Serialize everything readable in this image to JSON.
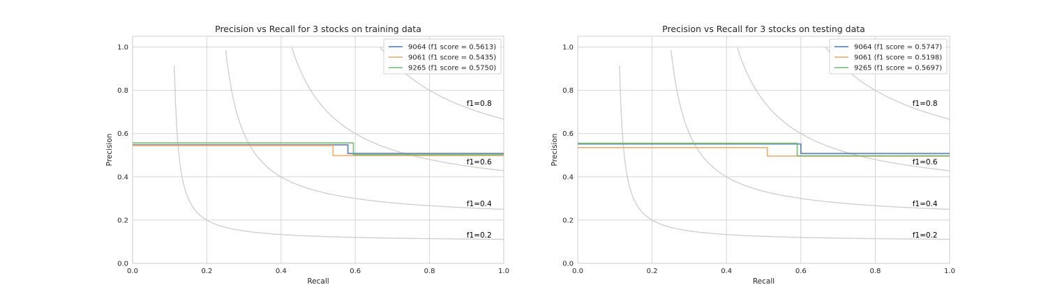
{
  "chart_data": [
    {
      "type": "line",
      "title": "Precision vs Recall for 3 stocks on training data",
      "xlabel": "Recall",
      "ylabel": "Precision",
      "xlim": [
        0.0,
        1.0
      ],
      "ylim": [
        0.0,
        1.05
      ],
      "xticks": [
        "0.0",
        "0.2",
        "0.4",
        "0.6",
        "0.8",
        "1.0"
      ],
      "yticks": [
        "0.0",
        "0.2",
        "0.4",
        "0.6",
        "0.8",
        "1.0"
      ],
      "grid": true,
      "legend_position": "top-right",
      "iso_f1": [
        {
          "f1": 0.2,
          "label": "f1=0.2"
        },
        {
          "f1": 0.4,
          "label": "f1=0.4"
        },
        {
          "f1": 0.6,
          "label": "f1=0.6"
        },
        {
          "f1": 0.8,
          "label": "f1=0.8"
        }
      ],
      "series": [
        {
          "name": "9064 (f1 score = 0.5613)",
          "color": "#4c72b0",
          "recall": [
            0.0,
            0.58,
            0.58,
            0.6,
            0.6,
            1.0
          ],
          "precision": [
            0.548,
            0.548,
            0.508,
            0.508,
            0.508,
            0.508
          ]
        },
        {
          "name": "9061 (f1 score = 0.5435)",
          "color": "#f5a65b",
          "recall": [
            0.0,
            0.54,
            0.54,
            1.0
          ],
          "precision": [
            0.545,
            0.545,
            0.498,
            0.498
          ]
        },
        {
          "name": "9265 (f1 score = 0.5750)",
          "color": "#6ab86a",
          "recall": [
            0.0,
            0.595,
            0.595,
            1.0
          ],
          "precision": [
            0.557,
            0.557,
            0.502,
            0.502
          ]
        }
      ]
    },
    {
      "type": "line",
      "title": "Precision vs Recall for 3 stocks on testing data",
      "xlabel": "Recall",
      "ylabel": "Precision",
      "xlim": [
        0.0,
        1.0
      ],
      "ylim": [
        0.0,
        1.05
      ],
      "xticks": [
        "0.0",
        "0.2",
        "0.4",
        "0.6",
        "0.8",
        "1.0"
      ],
      "yticks": [
        "0.0",
        "0.2",
        "0.4",
        "0.6",
        "0.8",
        "1.0"
      ],
      "grid": true,
      "legend_position": "top-right",
      "iso_f1": [
        {
          "f1": 0.2,
          "label": "f1=0.2"
        },
        {
          "f1": 0.4,
          "label": "f1=0.4"
        },
        {
          "f1": 0.6,
          "label": "f1=0.6"
        },
        {
          "f1": 0.8,
          "label": "f1=0.8"
        }
      ],
      "series": [
        {
          "name": "9064 (f1 score = 0.5747)",
          "color": "#4c72b0",
          "recall": [
            0.0,
            0.6,
            0.6,
            1.0
          ],
          "precision": [
            0.552,
            0.552,
            0.508,
            0.508
          ]
        },
        {
          "name": "9061 (f1 score = 0.5198)",
          "color": "#f5a65b",
          "recall": [
            0.0,
            0.51,
            0.51,
            1.0
          ],
          "precision": [
            0.535,
            0.535,
            0.496,
            0.496
          ]
        },
        {
          "name": "9265 (f1 score = 0.5697)",
          "color": "#6ab86a",
          "recall": [
            0.0,
            0.59,
            0.59,
            1.0
          ],
          "precision": [
            0.555,
            0.555,
            0.497,
            0.497
          ]
        }
      ]
    }
  ]
}
